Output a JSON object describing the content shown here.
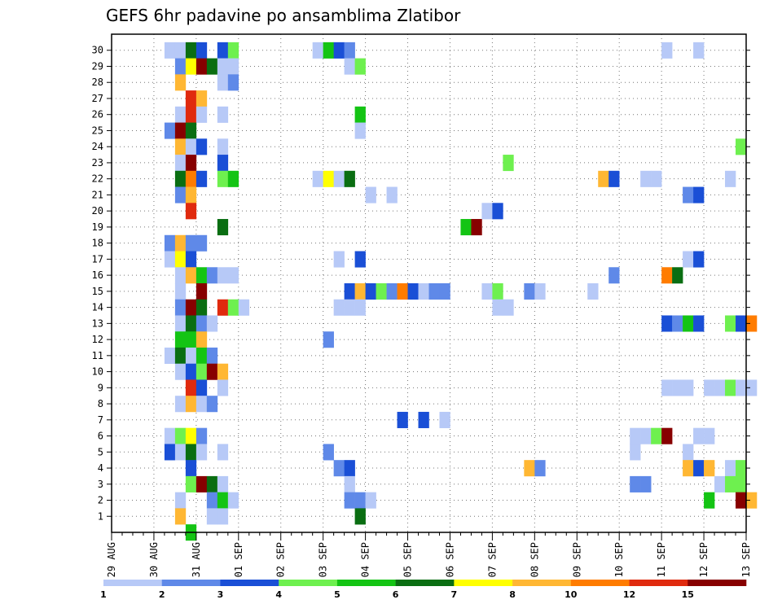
{
  "chart_data": {
    "type": "heatmap",
    "title": "GEFS 6hr padavine po ansamblima Zlatibor",
    "xlabel": "",
    "ylabel": "",
    "x_ticks": [
      "29 AUG",
      "30 AUG",
      "31 AUG",
      "01 SEP",
      "02 SEP",
      "03 SEP",
      "04 SEP",
      "05 SEP",
      "06 SEP",
      "07 SEP",
      "08 SEP",
      "09 SEP",
      "10 SEP",
      "11 SEP",
      "12 SEP",
      "13 SEP"
    ],
    "y_ticks": [
      1,
      2,
      3,
      4,
      5,
      6,
      7,
      8,
      9,
      10,
      11,
      12,
      13,
      14,
      15,
      16,
      17,
      18,
      19,
      20,
      21,
      22,
      23,
      24,
      25,
      26,
      27,
      28,
      29,
      30
    ],
    "y_range": [
      0,
      30
    ],
    "x_range_days": "29 AUG – 13 SEP",
    "time_step": "6hr",
    "grid": "dotted",
    "color_scale": {
      "levels": [
        "1",
        "2",
        "3",
        "4",
        "5",
        "6",
        "7",
        "8",
        "10",
        "12",
        "15",
        "20"
      ],
      "colors": [
        "#b7c9f7",
        "#5f89e8",
        "#1a4fd6",
        "#6ef04f",
        "#14c414",
        "#0a6e12",
        "#ffff00",
        "#ffb733",
        "#ff7c00",
        "#e02a0e",
        "#870000"
      ]
    },
    "cells": [
      [
        30,
        5,
        1
      ],
      [
        30,
        6,
        1
      ],
      [
        30,
        7,
        6
      ],
      [
        30,
        8,
        3
      ],
      [
        30,
        10,
        3
      ],
      [
        30,
        11,
        4
      ],
      [
        30,
        19,
        1
      ],
      [
        30,
        20,
        5
      ],
      [
        30,
        21,
        3
      ],
      [
        30,
        22,
        2
      ],
      [
        30,
        52,
        1
      ],
      [
        30,
        55,
        1
      ],
      [
        29,
        6,
        2
      ],
      [
        29,
        7,
        7
      ],
      [
        29,
        8,
        11
      ],
      [
        29,
        9,
        6
      ],
      [
        29,
        10,
        1
      ],
      [
        29,
        11,
        1
      ],
      [
        29,
        22,
        1
      ],
      [
        29,
        23,
        4
      ],
      [
        28,
        6,
        8
      ],
      [
        28,
        10,
        1
      ],
      [
        28,
        11,
        2
      ],
      [
        27,
        7,
        10
      ],
      [
        27,
        8,
        8
      ],
      [
        26,
        6,
        1
      ],
      [
        26,
        7,
        10
      ],
      [
        26,
        8,
        1
      ],
      [
        26,
        10,
        1
      ],
      [
        26,
        23,
        5
      ],
      [
        25,
        5,
        2
      ],
      [
        25,
        6,
        11
      ],
      [
        25,
        7,
        6
      ],
      [
        25,
        23,
        1
      ],
      [
        24,
        6,
        8
      ],
      [
        24,
        7,
        1
      ],
      [
        24,
        8,
        3
      ],
      [
        24,
        10,
        1
      ],
      [
        24,
        59,
        4
      ],
      [
        23,
        6,
        1
      ],
      [
        23,
        7,
        11
      ],
      [
        23,
        10,
        3
      ],
      [
        23,
        37,
        4
      ],
      [
        22,
        6,
        6
      ],
      [
        22,
        7,
        9
      ],
      [
        22,
        8,
        3
      ],
      [
        22,
        10,
        4
      ],
      [
        22,
        11,
        5
      ],
      [
        22,
        19,
        1
      ],
      [
        22,
        20,
        7
      ],
      [
        22,
        21,
        1
      ],
      [
        22,
        22,
        6
      ],
      [
        22,
        46,
        8
      ],
      [
        22,
        47,
        3
      ],
      [
        22,
        50,
        1
      ],
      [
        22,
        51,
        1
      ],
      [
        22,
        58,
        1
      ],
      [
        21,
        6,
        2
      ],
      [
        21,
        7,
        8
      ],
      [
        21,
        24,
        1
      ],
      [
        21,
        26,
        1
      ],
      [
        21,
        54,
        2
      ],
      [
        21,
        55,
        3
      ],
      [
        20,
        7,
        10
      ],
      [
        20,
        35,
        1
      ],
      [
        20,
        36,
        3
      ],
      [
        19,
        10,
        6
      ],
      [
        19,
        33,
        5
      ],
      [
        19,
        34,
        11
      ],
      [
        18,
        5,
        2
      ],
      [
        18,
        6,
        8
      ],
      [
        18,
        7,
        2
      ],
      [
        18,
        8,
        2
      ],
      [
        17,
        5,
        1
      ],
      [
        17,
        6,
        7
      ],
      [
        17,
        7,
        3
      ],
      [
        17,
        21,
        1
      ],
      [
        17,
        23,
        3
      ],
      [
        17,
        54,
        1
      ],
      [
        17,
        55,
        3
      ],
      [
        16,
        6,
        1
      ],
      [
        16,
        7,
        8
      ],
      [
        16,
        8,
        5
      ],
      [
        16,
        9,
        2
      ],
      [
        16,
        10,
        1
      ],
      [
        16,
        11,
        1
      ],
      [
        16,
        47,
        2
      ],
      [
        16,
        52,
        9
      ],
      [
        16,
        53,
        6
      ],
      [
        15,
        6,
        1
      ],
      [
        15,
        8,
        11
      ],
      [
        15,
        22,
        3
      ],
      [
        15,
        23,
        8
      ],
      [
        15,
        24,
        3
      ],
      [
        15,
        25,
        4
      ],
      [
        15,
        26,
        2
      ],
      [
        15,
        27,
        9
      ],
      [
        15,
        28,
        3
      ],
      [
        15,
        29,
        1
      ],
      [
        15,
        30,
        2
      ],
      [
        15,
        31,
        2
      ],
      [
        15,
        35,
        1
      ],
      [
        15,
        36,
        4
      ],
      [
        15,
        39,
        2
      ],
      [
        15,
        40,
        1
      ],
      [
        15,
        45,
        1
      ],
      [
        14,
        6,
        2
      ],
      [
        14,
        7,
        11
      ],
      [
        14,
        8,
        6
      ],
      [
        14,
        10,
        10
      ],
      [
        14,
        11,
        4
      ],
      [
        14,
        12,
        1
      ],
      [
        14,
        21,
        1
      ],
      [
        14,
        22,
        1
      ],
      [
        14,
        23,
        1
      ],
      [
        14,
        36,
        1
      ],
      [
        14,
        37,
        1
      ],
      [
        13,
        6,
        1
      ],
      [
        13,
        7,
        6
      ],
      [
        13,
        8,
        2
      ],
      [
        13,
        9,
        1
      ],
      [
        13,
        52,
        3
      ],
      [
        13,
        53,
        2
      ],
      [
        13,
        54,
        5
      ],
      [
        13,
        55,
        3
      ],
      [
        13,
        58,
        4
      ],
      [
        13,
        59,
        3
      ],
      [
        13,
        60,
        9
      ],
      [
        12,
        6,
        5
      ],
      [
        12,
        7,
        5
      ],
      [
        12,
        8,
        8
      ],
      [
        12,
        20,
        2
      ],
      [
        11,
        5,
        1
      ],
      [
        11,
        6,
        6
      ],
      [
        11,
        7,
        1
      ],
      [
        11,
        8,
        5
      ],
      [
        11,
        9,
        2
      ],
      [
        10,
        6,
        1
      ],
      [
        10,
        7,
        3
      ],
      [
        10,
        8,
        4
      ],
      [
        10,
        9,
        11
      ],
      [
        10,
        10,
        8
      ],
      [
        9,
        7,
        10
      ],
      [
        9,
        8,
        3
      ],
      [
        9,
        10,
        1
      ],
      [
        9,
        52,
        1
      ],
      [
        9,
        53,
        1
      ],
      [
        9,
        54,
        1
      ],
      [
        9,
        56,
        1
      ],
      [
        9,
        57,
        1
      ],
      [
        9,
        58,
        4
      ],
      [
        9,
        59,
        1
      ],
      [
        9,
        60,
        1
      ],
      [
        8,
        6,
        1
      ],
      [
        8,
        7,
        8
      ],
      [
        8,
        8,
        1
      ],
      [
        8,
        9,
        2
      ],
      [
        7,
        27,
        3
      ],
      [
        7,
        29,
        3
      ],
      [
        7,
        31,
        1
      ],
      [
        6,
        5,
        1
      ],
      [
        6,
        6,
        4
      ],
      [
        6,
        7,
        7
      ],
      [
        6,
        8,
        2
      ],
      [
        6,
        49,
        1
      ],
      [
        6,
        50,
        1
      ],
      [
        6,
        51,
        4
      ],
      [
        6,
        52,
        11
      ],
      [
        6,
        55,
        1
      ],
      [
        6,
        56,
        1
      ],
      [
        5,
        5,
        3
      ],
      [
        5,
        6,
        1
      ],
      [
        5,
        7,
        6
      ],
      [
        5,
        8,
        1
      ],
      [
        5,
        10,
        1
      ],
      [
        5,
        20,
        2
      ],
      [
        5,
        49,
        1
      ],
      [
        5,
        54,
        1
      ],
      [
        4,
        7,
        3
      ],
      [
        4,
        21,
        2
      ],
      [
        4,
        22,
        3
      ],
      [
        4,
        39,
        8
      ],
      [
        4,
        40,
        2
      ],
      [
        4,
        54,
        8
      ],
      [
        4,
        55,
        3
      ],
      [
        4,
        56,
        8
      ],
      [
        4,
        58,
        1
      ],
      [
        4,
        59,
        4
      ],
      [
        3,
        7,
        4
      ],
      [
        3,
        8,
        11
      ],
      [
        3,
        9,
        6
      ],
      [
        3,
        10,
        1
      ],
      [
        3,
        22,
        1
      ],
      [
        3,
        49,
        2
      ],
      [
        3,
        50,
        2
      ],
      [
        3,
        57,
        1
      ],
      [
        3,
        58,
        4
      ],
      [
        3,
        59,
        4
      ],
      [
        2,
        6,
        1
      ],
      [
        2,
        9,
        2
      ],
      [
        2,
        10,
        5
      ],
      [
        2,
        11,
        1
      ],
      [
        2,
        22,
        2
      ],
      [
        2,
        23,
        2
      ],
      [
        2,
        24,
        1
      ],
      [
        2,
        56,
        5
      ],
      [
        2,
        59,
        11
      ],
      [
        2,
        60,
        8
      ],
      [
        1,
        6,
        8
      ],
      [
        1,
        9,
        1
      ],
      [
        1,
        10,
        1
      ],
      [
        1,
        23,
        6
      ],
      [
        0,
        7,
        5
      ]
    ]
  }
}
